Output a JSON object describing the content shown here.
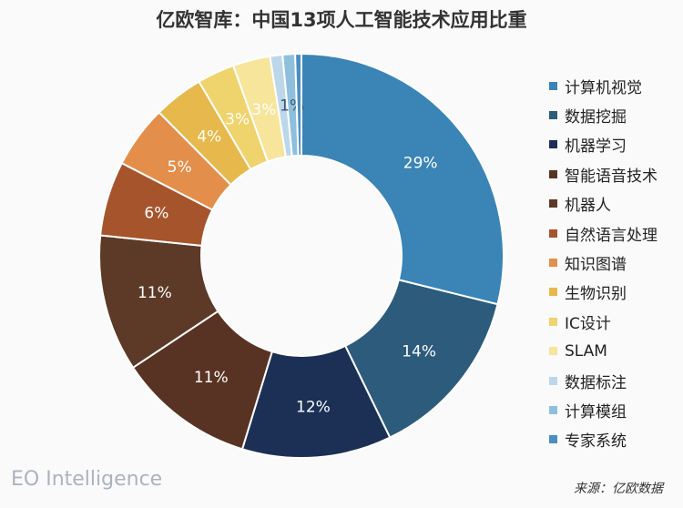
{
  "chart_data": {
    "type": "pie",
    "variant": "donut",
    "title": "亿欧智库：中国13项人工智能技术应用比重",
    "categories": [
      "计算机视觉",
      "数据挖掘",
      "机器学习",
      "智能语音技术",
      "机器人",
      "自然语言处理",
      "知识图谱",
      "生物识别",
      "IC设计",
      "SLAM",
      "数据标注",
      "计算模组",
      "专家系统"
    ],
    "values": [
      29,
      14,
      12,
      11,
      11,
      6,
      5,
      4,
      3,
      3,
      1,
      1,
      0.5
    ],
    "data_labels": [
      "29%",
      "14%",
      "12%",
      "11%",
      "11%",
      "6%",
      "5%",
      "4%",
      "3%",
      "3%",
      "",
      "1%",
      ""
    ],
    "colors": [
      "#3a84b6",
      "#2c5b7c",
      "#1b3054",
      "#583323",
      "#5d3a27",
      "#a6542c",
      "#e38e4a",
      "#e7b84b",
      "#efd36c",
      "#f6e59a",
      "#bdd7ea",
      "#8ec0dd",
      "#4a8ec2"
    ],
    "legend_position": "right"
  },
  "brand": "EO Intelligence",
  "source": "来源：亿欧数据"
}
